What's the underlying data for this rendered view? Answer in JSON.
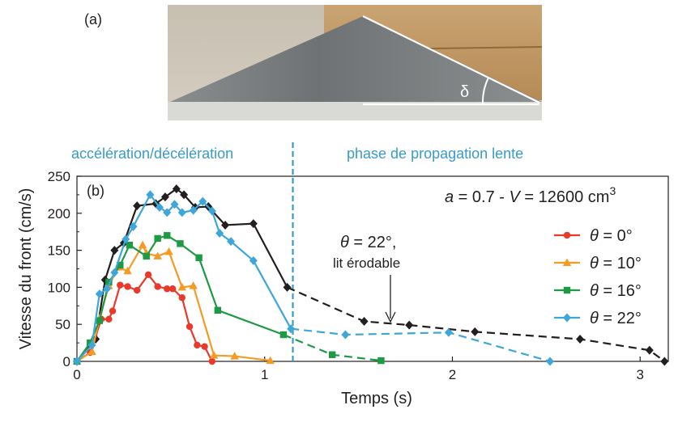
{
  "panel_a": {
    "label": "(a)",
    "angle_symbol": "δ"
  },
  "phase_labels": {
    "left": "accélération/décélération",
    "right": "phase de propagation lente"
  },
  "colors": {
    "black": "#231f20",
    "red": "#e8392b",
    "orange": "#f59a23",
    "green": "#1e9a45",
    "blue": "#3ea6d8",
    "phase_text": "#3a9bc9"
  },
  "chart_data": {
    "type": "line",
    "panel_label": "(b)",
    "xlabel": "Temps (s)",
    "ylabel": "Vitesse du front (cm/s)",
    "xlim": [
      0,
      3.15
    ],
    "ylim": [
      0,
      250
    ],
    "xticks": [
      0,
      1,
      2,
      3
    ],
    "yticks": [
      0,
      50,
      100,
      150,
      200,
      250
    ],
    "annotation_params": {
      "a_sym": "a",
      "a_rest": " = 0.7 - ",
      "v_sym": "V",
      "v_rest": " = 12600 cm",
      "v_exp": "3"
    },
    "arrow_note": {
      "line1_sym": "θ",
      "line1_rest": " = 22°,",
      "line2": "lit érodable"
    },
    "phase_boundary_x": 1.15,
    "legend_position": "right",
    "series": [
      {
        "name_sym": "θ",
        "name_rest": " = 0°",
        "color": "#e8392b",
        "marker": "circle",
        "in_legend": true,
        "solid": [
          [
            0,
            0
          ],
          [
            0.07,
            12
          ],
          [
            0.13,
            57
          ],
          [
            0.17,
            57
          ],
          [
            0.19,
            68
          ],
          [
            0.23,
            103
          ],
          [
            0.27,
            101
          ],
          [
            0.32,
            96
          ],
          [
            0.38,
            117
          ],
          [
            0.43,
            101
          ],
          [
            0.48,
            98
          ],
          [
            0.51,
            98
          ],
          [
            0.56,
            86
          ],
          [
            0.6,
            47
          ],
          [
            0.64,
            22
          ],
          [
            0.68,
            20
          ],
          [
            0.72,
            0
          ]
        ],
        "dashed": []
      },
      {
        "name_sym": "θ",
        "name_rest": " = 10°",
        "color": "#f59a23",
        "marker": "triangle",
        "in_legend": true,
        "solid": [
          [
            0,
            0
          ],
          [
            0.08,
            13
          ],
          [
            0.12,
            58
          ],
          [
            0.17,
            102
          ],
          [
            0.22,
            127
          ],
          [
            0.27,
            122
          ],
          [
            0.35,
            157
          ],
          [
            0.37,
            146
          ],
          [
            0.43,
            142
          ],
          [
            0.49,
            148
          ],
          [
            0.56,
            100
          ],
          [
            0.62,
            102
          ],
          [
            0.73,
            8
          ],
          [
            0.84,
            7
          ],
          [
            1.03,
            1
          ]
        ],
        "dashed": []
      },
      {
        "name_sym": "θ",
        "name_rest": " = 16°",
        "color": "#1e9a45",
        "marker": "square",
        "in_legend": true,
        "solid": [
          [
            0,
            0
          ],
          [
            0.07,
            25
          ],
          [
            0.12,
            55
          ],
          [
            0.17,
            107
          ],
          [
            0.23,
            130
          ],
          [
            0.28,
            157
          ],
          [
            0.37,
            142
          ],
          [
            0.43,
            166
          ],
          [
            0.48,
            170
          ],
          [
            0.55,
            159
          ],
          [
            0.65,
            140
          ],
          [
            0.75,
            69
          ],
          [
            1.1,
            36
          ]
        ],
        "dashed": [
          [
            1.1,
            36
          ],
          [
            1.36,
            9
          ],
          [
            1.62,
            1
          ]
        ]
      },
      {
        "name_sym": "θ",
        "name_rest": " = 22°",
        "color": "#3ea6d8",
        "marker": "diamond",
        "in_legend": true,
        "solid": [
          [
            0,
            0
          ],
          [
            0.08,
            22
          ],
          [
            0.12,
            91
          ],
          [
            0.16,
            98
          ],
          [
            0.2,
            120
          ],
          [
            0.26,
            165
          ],
          [
            0.3,
            182
          ],
          [
            0.39,
            225
          ],
          [
            0.44,
            208
          ],
          [
            0.48,
            201
          ],
          [
            0.52,
            212
          ],
          [
            0.56,
            201
          ],
          [
            0.62,
            204
          ],
          [
            0.67,
            216
          ],
          [
            0.72,
            203
          ],
          [
            0.76,
            173
          ],
          [
            0.82,
            162
          ],
          [
            0.94,
            136
          ],
          [
            1.14,
            44
          ]
        ],
        "dashed": [
          [
            1.14,
            44
          ],
          [
            1.43,
            36
          ],
          [
            1.98,
            39
          ],
          [
            2.52,
            0
          ]
        ]
      },
      {
        "name_sym": "θ",
        "name_rest": " = 22°, lit érodable",
        "color": "#231f20",
        "marker": "diamond",
        "in_legend": false,
        "solid": [
          [
            0,
            0
          ],
          [
            0.1,
            30
          ],
          [
            0.15,
            110
          ],
          [
            0.2,
            150
          ],
          [
            0.25,
            160
          ],
          [
            0.32,
            210
          ],
          [
            0.42,
            213
          ],
          [
            0.47,
            222
          ],
          [
            0.53,
            233
          ],
          [
            0.57,
            225
          ],
          [
            0.63,
            208
          ],
          [
            0.7,
            209
          ],
          [
            0.79,
            184
          ],
          [
            0.94,
            186
          ],
          [
            1.12,
            100
          ]
        ],
        "dashed": [
          [
            1.12,
            100
          ],
          [
            1.53,
            54
          ],
          [
            1.77,
            49
          ],
          [
            2.12,
            40
          ],
          [
            2.68,
            30
          ],
          [
            3.05,
            15
          ],
          [
            3.13,
            0
          ]
        ]
      }
    ]
  }
}
